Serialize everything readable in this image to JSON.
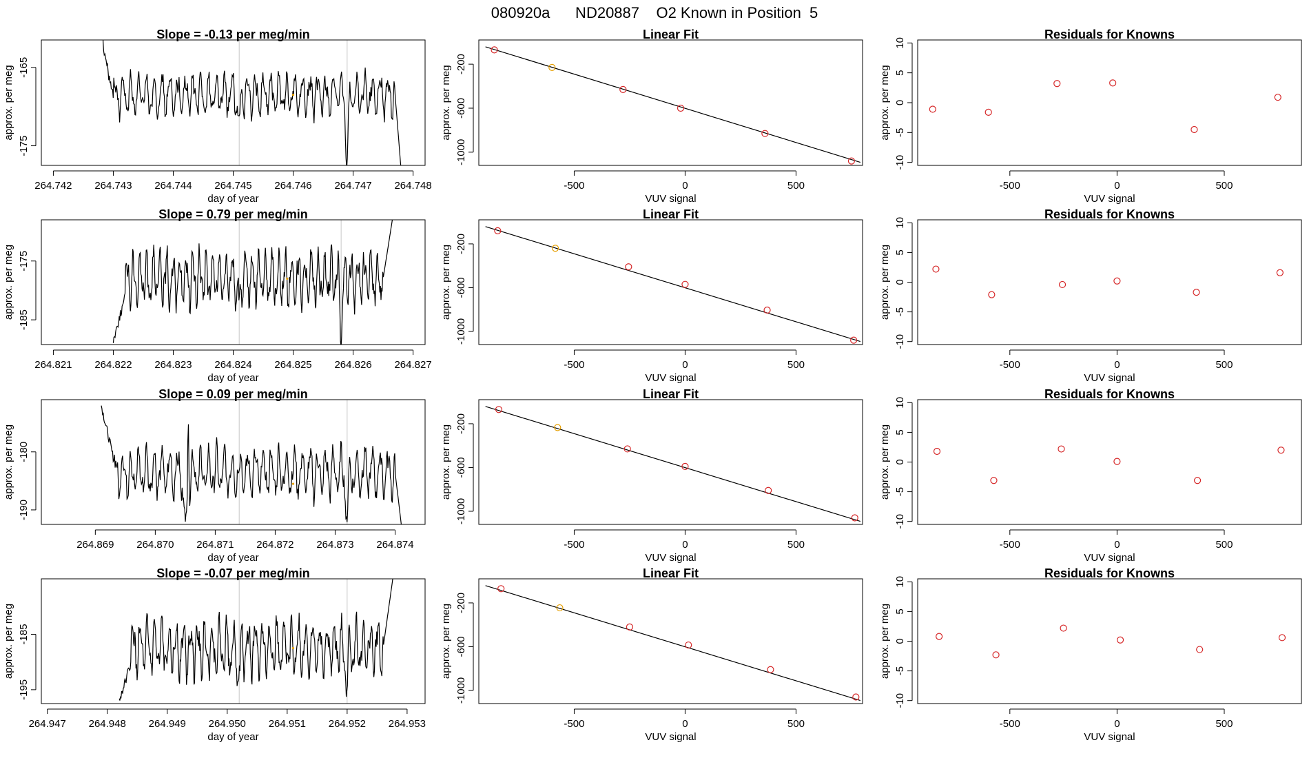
{
  "figure": {
    "title": "080920a      ND20887    O2 Known in Position  5"
  },
  "colors": {
    "line": "#000000",
    "grid": "#c8c8c8",
    "residual": "#d62728",
    "known": "#e69f00"
  },
  "chart_data": [
    {
      "row": 1,
      "time": {
        "type": "line",
        "title": "Slope =  -0.13  per meg/min",
        "xlabel": "day of year",
        "ylabel": "approx. per meg",
        "xlim": [
          264.7418,
          264.7482
        ],
        "ylim": [
          -177.5,
          -161.5
        ],
        "xticks": [
          264.742,
          264.743,
          264.744,
          264.745,
          264.746,
          264.747,
          264.748
        ],
        "xticklabels": [
          "264.742",
          "264.743",
          "264.744",
          "264.745",
          "264.746",
          "264.747",
          "264.748"
        ],
        "yticks": [
          -165,
          -175
        ],
        "yticklabels": [
          "-165",
          "-175"
        ],
        "vlines": [
          264.7451,
          264.7469
        ],
        "start": 264.743,
        "end": 264.7477,
        "base": -168.5,
        "amp": 2.0,
        "period": 0.00013,
        "lead": {
          "from": -157.0,
          "to": -169.0,
          "dur": 0.0003
        },
        "tail": {
          "to": -180.0,
          "dur": 0.00012
        },
        "dips": [
          [
            264.7451,
            -4.0
          ],
          [
            264.7469,
            -9.0
          ]
        ],
        "known_point": [
          264.746,
          -168.5
        ]
      },
      "fit": {
        "type": "scatter",
        "title": "Linear Fit",
        "xlabel": "VUV signal",
        "ylabel": "approx. per meg",
        "xlim": [
          -930,
          800
        ],
        "ylim": [
          -1120,
          20
        ],
        "xticks": [
          -500,
          0,
          500
        ],
        "xticklabels": [
          "-500",
          "0",
          "500"
        ],
        "yticks": [
          -200,
          -600,
          -1000
        ],
        "yticklabels": [
          "-200",
          "-600",
          "-1000"
        ],
        "line": [
          [
            -900,
            -42
          ],
          [
            790,
            -1092
          ]
        ],
        "points": [
          [
            -860,
            -70
          ],
          [
            -600,
            -230
          ],
          [
            -280,
            -430
          ],
          [
            -20,
            -600
          ],
          [
            360,
            -830
          ],
          [
            750,
            -1080
          ]
        ],
        "known_index": 1
      },
      "residuals": {
        "type": "scatter",
        "title": "Residuals for Knowns",
        "xlabel": "VUV signal",
        "ylabel": "approx. per meg",
        "xlim": [
          -930,
          860
        ],
        "ylim": [
          -10.5,
          10.5
        ],
        "xticks": [
          -500,
          0,
          500
        ],
        "xticklabels": [
          "-500",
          "0",
          "500"
        ],
        "yticks": [
          10,
          5,
          0,
          -5,
          -10
        ],
        "yticklabels": [
          "10",
          "5",
          "0",
          "-5",
          "-10"
        ],
        "points": [
          [
            -860,
            -1.1
          ],
          [
            -600,
            -1.6
          ],
          [
            -280,
            3.2
          ],
          [
            -20,
            3.3
          ],
          [
            360,
            -4.5
          ],
          [
            750,
            0.9
          ]
        ]
      }
    },
    {
      "row": 2,
      "time": {
        "type": "line",
        "title": "Slope =  0.79  per meg/min",
        "xlabel": "day of year",
        "ylabel": "approx. per meg",
        "xlim": [
          264.8208,
          264.8272
        ],
        "ylim": [
          -189.2,
          -168.0
        ],
        "xticks": [
          264.821,
          264.822,
          264.823,
          264.824,
          264.825,
          264.826,
          264.827
        ],
        "xticklabels": [
          "264.821",
          "264.822",
          "264.823",
          "264.824",
          "264.825",
          "264.826",
          "264.827"
        ],
        "yticks": [
          -175,
          -185
        ],
        "yticklabels": [
          "-175",
          "-185"
        ],
        "vlines": [
          264.8241,
          264.8258
        ],
        "start": 264.8222,
        "end": 264.8265,
        "base": -178.0,
        "amp": 3.5,
        "period": 0.00011,
        "lead": {
          "from": -188.5,
          "to": -181.0,
          "dur": 0.0002
        },
        "tail": {
          "to": -165.0,
          "dur": 0.0002
        },
        "dips": [
          [
            264.8241,
            -5.0
          ],
          [
            264.8258,
            -9.0
          ]
        ],
        "known_point": [
          264.8249,
          -178.0
        ]
      },
      "fit": {
        "type": "scatter",
        "title": "Linear Fit",
        "xlabel": "VUV signal",
        "ylabel": "approx. per meg",
        "xlim": [
          -930,
          800
        ],
        "ylim": [
          -1120,
          20
        ],
        "xticks": [
          -500,
          0,
          500
        ],
        "xticklabels": [
          "-500",
          "0",
          "500"
        ],
        "yticks": [
          -200,
          -600,
          -1000
        ],
        "yticklabels": [
          "-200",
          "-600",
          "-1000"
        ],
        "line": [
          [
            -900,
            -42
          ],
          [
            790,
            -1092
          ]
        ],
        "points": [
          [
            -845,
            -80
          ],
          [
            -585,
            -240
          ],
          [
            -255,
            -410
          ],
          [
            0,
            -570
          ],
          [
            370,
            -805
          ],
          [
            760,
            -1080
          ]
        ],
        "known_index": 1
      },
      "residuals": {
        "type": "scatter",
        "title": "Residuals for Knowns",
        "xlabel": "VUV signal",
        "ylabel": "approx. per meg",
        "xlim": [
          -930,
          860
        ],
        "ylim": [
          -10.5,
          10.5
        ],
        "xticks": [
          -500,
          0,
          500
        ],
        "xticklabels": [
          "-500",
          "0",
          "500"
        ],
        "yticks": [
          10,
          5,
          0,
          -5,
          -10
        ],
        "yticklabels": [
          "10",
          "5",
          "0",
          "-5",
          "-10"
        ],
        "points": [
          [
            -845,
            2.2
          ],
          [
            -585,
            -2.1
          ],
          [
            -255,
            -0.4
          ],
          [
            0,
            0.2
          ],
          [
            370,
            -1.7
          ],
          [
            760,
            1.6
          ]
        ]
      }
    },
    {
      "row": 3,
      "time": {
        "type": "line",
        "title": "Slope =  0.09  per meg/min",
        "xlabel": "day of year",
        "ylabel": "approx. per meg",
        "xlim": [
          264.8681,
          264.8745
        ],
        "ylim": [
          -192.5,
          -171.0
        ],
        "xticks": [
          264.869,
          264.87,
          264.871,
          264.872,
          264.873,
          264.874
        ],
        "xticklabels": [
          "264.869",
          "264.870",
          "264.871",
          "264.872",
          "264.873",
          "264.874"
        ],
        "yticks": [
          -180,
          -190
        ],
        "yticklabels": [
          "-180",
          "-190"
        ],
        "vlines": [
          264.8714,
          264.8732
        ],
        "start": 264.8693,
        "end": 264.874,
        "base": -183.5,
        "amp": 3.2,
        "period": 0.00013,
        "lead": {
          "from": -172.0,
          "to": -181.0,
          "dur": 0.0002
        },
        "tail": {
          "to": -194.0,
          "dur": 0.00012
        },
        "dips": [
          [
            264.8705,
            -12.0
          ],
          [
            264.8732,
            -8.0
          ]
        ],
        "spikes": [
          [
            264.87055,
            14.0
          ]
        ],
        "known_point": [
          264.8723,
          -185.5
        ]
      },
      "fit": {
        "type": "scatter",
        "title": "Linear Fit",
        "xlabel": "VUV signal",
        "ylabel": "approx. per meg",
        "xlim": [
          -930,
          800
        ],
        "ylim": [
          -1120,
          20
        ],
        "xticks": [
          -500,
          0,
          500
        ],
        "xticklabels": [
          "-500",
          "0",
          "500"
        ],
        "yticks": [
          -200,
          -600,
          -1000
        ],
        "yticklabels": [
          "-200",
          "-600",
          "-1000"
        ],
        "line": [
          [
            -900,
            -42
          ],
          [
            790,
            -1092
          ]
        ],
        "points": [
          [
            -840,
            -70
          ],
          [
            -575,
            -235
          ],
          [
            -260,
            -430
          ],
          [
            0,
            -590
          ],
          [
            375,
            -810
          ],
          [
            765,
            -1060
          ]
        ],
        "known_index": 1
      },
      "residuals": {
        "type": "scatter",
        "title": "Residuals for Knowns",
        "xlabel": "VUV signal",
        "ylabel": "approx. per meg",
        "xlim": [
          -930,
          860
        ],
        "ylim": [
          -10.5,
          10.5
        ],
        "xticks": [
          -500,
          0,
          500
        ],
        "xticklabels": [
          "-500",
          "0",
          "500"
        ],
        "yticks": [
          10,
          5,
          0,
          -5,
          -10
        ],
        "yticklabels": [
          "10",
          "5",
          "0",
          "-5",
          "-10"
        ],
        "points": [
          [
            -840,
            1.8
          ],
          [
            -575,
            -3.1
          ],
          [
            -260,
            2.2
          ],
          [
            0,
            0.1
          ],
          [
            375,
            -3.1
          ],
          [
            765,
            2.0
          ]
        ]
      }
    },
    {
      "row": 4,
      "time": {
        "type": "line",
        "title": "Slope =  -0.07  per meg/min",
        "xlabel": "day of year",
        "ylabel": "approx. per meg",
        "xlim": [
          264.9469,
          264.9533
        ],
        "ylim": [
          -197.5,
          -175.0
        ],
        "xticks": [
          264.947,
          264.948,
          264.949,
          264.95,
          264.951,
          264.952,
          264.953
        ],
        "xticklabels": [
          "264.947",
          "264.948",
          "264.949",
          "264.950",
          "264.951",
          "264.952",
          "264.953"
        ],
        "yticks": [
          -185,
          -195
        ],
        "yticklabels": [
          "-185",
          "-195"
        ],
        "vlines": [
          264.9502,
          264.952
        ],
        "start": 264.9484,
        "end": 264.9526,
        "base": -187.5,
        "amp": 3.8,
        "period": 0.00012,
        "lead": {
          "from": -197.0,
          "to": -190.0,
          "dur": 0.0002
        },
        "tail": {
          "to": -172.0,
          "dur": 0.0002
        },
        "dips": [
          [
            264.9502,
            -5.0
          ],
          [
            264.952,
            -6.0
          ]
        ],
        "known_point": [
          264.9511,
          -187.5
        ]
      },
      "fit": {
        "type": "scatter",
        "title": "Linear Fit",
        "xlabel": "VUV signal",
        "ylabel": "approx. per meg",
        "xlim": [
          -930,
          800
        ],
        "ylim": [
          -1120,
          20
        ],
        "xticks": [
          -500,
          0,
          500
        ],
        "xticklabels": [
          "-500",
          "0",
          "500"
        ],
        "yticks": [
          -200,
          -600,
          -1000
        ],
        "yticklabels": [
          "-200",
          "-600",
          "-1000"
        ],
        "line": [
          [
            -900,
            -42
          ],
          [
            790,
            -1092
          ]
        ],
        "points": [
          [
            -830,
            -70
          ],
          [
            -565,
            -245
          ],
          [
            -250,
            -420
          ],
          [
            15,
            -585
          ],
          [
            385,
            -810
          ],
          [
            770,
            -1060
          ]
        ],
        "known_index": 1
      },
      "residuals": {
        "type": "scatter",
        "title": "Residuals for Knowns",
        "xlabel": "VUV signal",
        "ylabel": "approx. per meg",
        "xlim": [
          -930,
          860
        ],
        "ylim": [
          -10.5,
          10.5
        ],
        "xticks": [
          -500,
          0,
          500
        ],
        "xticklabels": [
          "-500",
          "0",
          "500"
        ],
        "yticks": [
          10,
          5,
          0,
          -5,
          -10
        ],
        "yticklabels": [
          "10",
          "5",
          "0",
          "-5",
          "-10"
        ],
        "points": [
          [
            -830,
            0.8
          ],
          [
            -565,
            -2.3
          ],
          [
            -250,
            2.2
          ],
          [
            15,
            0.2
          ],
          [
            385,
            -1.4
          ],
          [
            770,
            0.6
          ]
        ]
      }
    }
  ]
}
